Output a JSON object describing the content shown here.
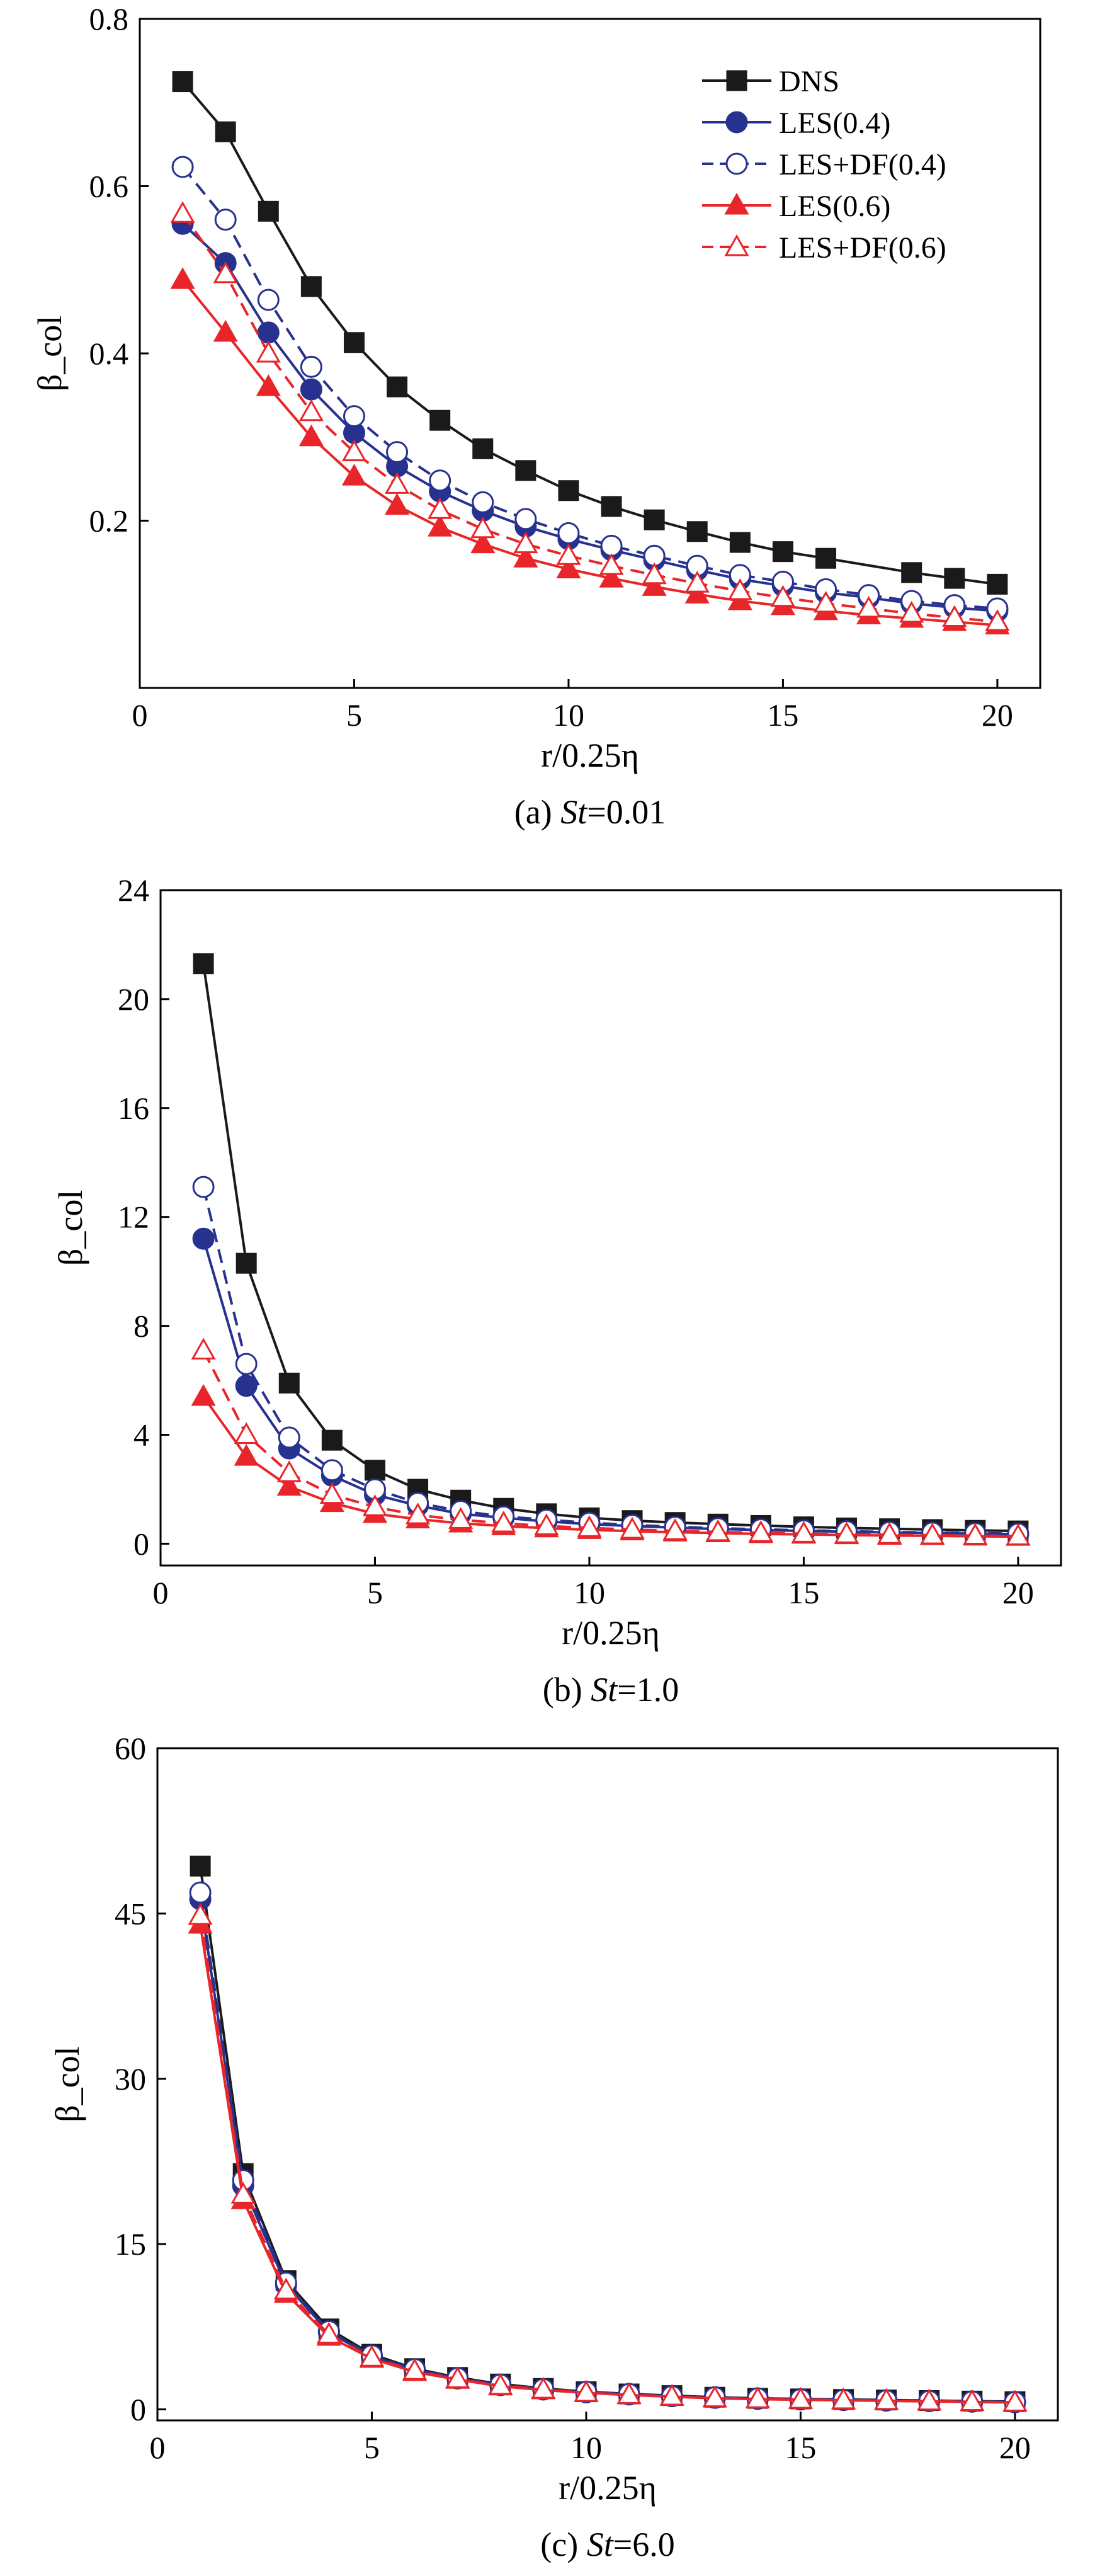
{
  "figure_title": "",
  "legend": [
    "DNS",
    "LES(0.4)",
    "LES+DF(0.4)",
    "LES(0.6)",
    "LES+DF(0.6)"
  ],
  "colors": {
    "dns": "#1a1a1a",
    "les04": "#27318f",
    "les06": "#e8262a",
    "axis": "#000000",
    "background": "#ffffff"
  },
  "chart_data": [
    {
      "type": "line",
      "id": "a",
      "caption_prefix": "(a) ",
      "caption_var": "St",
      "caption_value": "=0.01",
      "xlabel": "r/0.25η",
      "ylabel": "β_col",
      "xlim": [
        0,
        21
      ],
      "ylim": [
        0,
        0.8
      ],
      "xticks": [
        0,
        5,
        10,
        15,
        20
      ],
      "yticks": [
        0.2,
        0.4,
        0.6,
        0.8
      ],
      "xtick_labels": [
        "0",
        "5",
        "10",
        "15",
        "20"
      ],
      "ytick_labels": [
        "0.2",
        "0.4",
        "0.6",
        "0.8"
      ],
      "legend_position": "top-right",
      "series": [
        {
          "name": "DNS",
          "x": [
            1,
            2,
            3,
            4,
            5,
            6,
            7,
            8,
            9,
            10,
            11,
            12,
            13,
            14,
            15,
            16,
            18,
            19,
            20
          ],
          "values": [
            0.725,
            0.665,
            0.57,
            0.48,
            0.413,
            0.36,
            0.32,
            0.286,
            0.26,
            0.236,
            0.217,
            0.201,
            0.187,
            0.174,
            0.163,
            0.155,
            0.138,
            0.131,
            0.124
          ]
        },
        {
          "name": "LES(0.4)",
          "x": [
            1,
            2,
            3,
            4,
            5,
            6,
            7,
            8,
            9,
            10,
            11,
            12,
            13,
            14,
            15,
            16,
            17,
            18,
            19,
            20
          ],
          "values": [
            0.555,
            0.508,
            0.425,
            0.357,
            0.305,
            0.265,
            0.235,
            0.212,
            0.193,
            0.178,
            0.165,
            0.153,
            0.141,
            0.13,
            0.122,
            0.114,
            0.108,
            0.101,
            0.096,
            0.092
          ]
        },
        {
          "name": "LES+DF(0.4)",
          "x": [
            1,
            2,
            3,
            4,
            5,
            6,
            7,
            8,
            9,
            10,
            11,
            12,
            13,
            14,
            15,
            16,
            17,
            18,
            19,
            20
          ],
          "values": [
            0.623,
            0.56,
            0.464,
            0.384,
            0.325,
            0.282,
            0.248,
            0.222,
            0.202,
            0.185,
            0.17,
            0.158,
            0.146,
            0.135,
            0.127,
            0.118,
            0.111,
            0.104,
            0.099,
            0.095
          ]
        },
        {
          "name": "LES(0.6)",
          "x": [
            1,
            2,
            3,
            4,
            5,
            6,
            7,
            8,
            9,
            10,
            11,
            12,
            13,
            14,
            15,
            16,
            17,
            18,
            19,
            20
          ],
          "values": [
            0.488,
            0.425,
            0.36,
            0.3,
            0.253,
            0.218,
            0.192,
            0.172,
            0.155,
            0.142,
            0.131,
            0.121,
            0.112,
            0.104,
            0.098,
            0.092,
            0.087,
            0.083,
            0.079,
            0.075
          ]
        },
        {
          "name": "LES+DF(0.6)",
          "x": [
            1,
            2,
            3,
            4,
            5,
            6,
            7,
            8,
            9,
            10,
            11,
            12,
            13,
            14,
            15,
            16,
            17,
            18,
            19,
            20
          ],
          "values": [
            0.567,
            0.495,
            0.4,
            0.33,
            0.282,
            0.243,
            0.213,
            0.19,
            0.172,
            0.158,
            0.146,
            0.135,
            0.125,
            0.116,
            0.108,
            0.101,
            0.095,
            0.089,
            0.084,
            0.079
          ]
        }
      ]
    },
    {
      "type": "line",
      "id": "b",
      "caption_prefix": "(b) ",
      "caption_var": "St",
      "caption_value": "=1.0",
      "xlabel": "r/0.25η",
      "ylabel": "β_col",
      "xlim": [
        0,
        21
      ],
      "ylim": [
        -0.8,
        24
      ],
      "xticks": [
        0,
        5,
        10,
        15,
        20
      ],
      "yticks": [
        0,
        4,
        8,
        12,
        16,
        20,
        24
      ],
      "xtick_labels": [
        "0",
        "5",
        "10",
        "15",
        "20"
      ],
      "ytick_labels": [
        "0",
        "4",
        "8",
        "12",
        "16",
        "20",
        "24"
      ],
      "series": [
        {
          "name": "DNS",
          "x": [
            1,
            2,
            3,
            4,
            5,
            6,
            7,
            8,
            9,
            10,
            11,
            12,
            13,
            14,
            15,
            16,
            17,
            18,
            19,
            20
          ],
          "values": [
            21.3,
            10.3,
            5.9,
            3.8,
            2.7,
            2.0,
            1.6,
            1.3,
            1.1,
            0.95,
            0.85,
            0.78,
            0.72,
            0.67,
            0.62,
            0.58,
            0.55,
            0.52,
            0.49,
            0.47
          ]
        },
        {
          "name": "LES(0.4)",
          "x": [
            1,
            2,
            3,
            4,
            5,
            6,
            7,
            8,
            9,
            10,
            11,
            12,
            13,
            14,
            15,
            16,
            17,
            18,
            19,
            20
          ],
          "values": [
            11.2,
            5.8,
            3.5,
            2.5,
            1.8,
            1.4,
            1.1,
            0.95,
            0.82,
            0.72,
            0.65,
            0.59,
            0.54,
            0.5,
            0.47,
            0.44,
            0.41,
            0.39,
            0.37,
            0.35
          ]
        },
        {
          "name": "LES+DF(0.4)",
          "x": [
            1,
            2,
            3,
            4,
            5,
            6,
            7,
            8,
            9,
            10,
            11,
            12,
            13,
            14,
            15,
            16,
            17,
            18,
            19,
            20
          ],
          "values": [
            13.1,
            6.6,
            3.9,
            2.7,
            2.0,
            1.5,
            1.2,
            1.0,
            0.88,
            0.77,
            0.69,
            0.62,
            0.57,
            0.53,
            0.49,
            0.46,
            0.43,
            0.41,
            0.39,
            0.37
          ]
        },
        {
          "name": "LES(0.6)",
          "x": [
            1,
            2,
            3,
            4,
            5,
            6,
            7,
            8,
            9,
            10,
            11,
            12,
            13,
            14,
            15,
            16,
            17,
            18,
            19,
            20
          ],
          "values": [
            5.4,
            3.2,
            2.1,
            1.5,
            1.1,
            0.9,
            0.75,
            0.65,
            0.57,
            0.51,
            0.46,
            0.42,
            0.39,
            0.36,
            0.34,
            0.32,
            0.3,
            0.29,
            0.27,
            0.26
          ]
        },
        {
          "name": "LES+DF(0.6)",
          "x": [
            1,
            2,
            3,
            4,
            5,
            6,
            7,
            8,
            9,
            10,
            11,
            12,
            13,
            14,
            15,
            16,
            17,
            18,
            19,
            20
          ],
          "values": [
            7.1,
            4.0,
            2.6,
            1.8,
            1.35,
            1.05,
            0.88,
            0.75,
            0.65,
            0.58,
            0.52,
            0.47,
            0.43,
            0.4,
            0.37,
            0.35,
            0.33,
            0.31,
            0.3,
            0.28
          ]
        }
      ]
    },
    {
      "type": "line",
      "id": "c",
      "caption_prefix": "(c) ",
      "caption_var": "St",
      "caption_value": "=6.0",
      "xlabel": "r/0.25η",
      "ylabel": "β_col",
      "xlim": [
        0,
        21
      ],
      "ylim": [
        -1,
        60
      ],
      "xticks": [
        0,
        5,
        10,
        15,
        20
      ],
      "yticks": [
        0,
        15,
        30,
        45,
        60
      ],
      "xtick_labels": [
        "0",
        "5",
        "10",
        "15",
        "20"
      ],
      "ytick_labels": [
        "0",
        "15",
        "30",
        "45",
        "60"
      ],
      "series": [
        {
          "name": "DNS",
          "x": [
            1,
            2,
            3,
            4,
            5,
            6,
            7,
            8,
            9,
            10,
            11,
            12,
            13,
            14,
            15,
            16,
            17,
            18,
            19,
            20
          ],
          "values": [
            49.3,
            21.4,
            11.7,
            7.3,
            5.0,
            3.7,
            2.9,
            2.3,
            1.9,
            1.6,
            1.4,
            1.25,
            1.1,
            1.0,
            0.95,
            0.9,
            0.85,
            0.8,
            0.75,
            0.7
          ]
        },
        {
          "name": "LES(0.4)",
          "x": [
            1,
            2,
            3,
            4,
            5,
            6,
            7,
            8,
            9,
            10,
            11,
            12,
            13,
            14,
            15,
            16,
            17,
            18,
            19,
            20
          ],
          "values": [
            46.3,
            20.3,
            11.3,
            7.0,
            4.8,
            3.6,
            2.8,
            2.2,
            1.8,
            1.55,
            1.35,
            1.2,
            1.05,
            0.95,
            0.9,
            0.85,
            0.8,
            0.75,
            0.7,
            0.65
          ]
        },
        {
          "name": "LES+DF(0.4)",
          "x": [
            1,
            2,
            3,
            4,
            5,
            6,
            7,
            8,
            9,
            10,
            11,
            12,
            13,
            14,
            15,
            16,
            17,
            18,
            19,
            20
          ],
          "values": [
            46.9,
            20.8,
            11.5,
            7.1,
            4.9,
            3.65,
            2.85,
            2.25,
            1.85,
            1.6,
            1.4,
            1.2,
            1.1,
            1.0,
            0.92,
            0.87,
            0.82,
            0.77,
            0.72,
            0.67
          ]
        },
        {
          "name": "LES(0.6)",
          "x": [
            1,
            2,
            3,
            4,
            5,
            6,
            7,
            8,
            9,
            10,
            11,
            12,
            13,
            14,
            15,
            16,
            17,
            18,
            19,
            20
          ],
          "values": [
            44.0,
            19.0,
            10.5,
            6.6,
            4.6,
            3.4,
            2.7,
            2.1,
            1.75,
            1.5,
            1.3,
            1.15,
            1.0,
            0.92,
            0.87,
            0.82,
            0.77,
            0.72,
            0.67,
            0.62
          ]
        },
        {
          "name": "LES+DF(0.6)",
          "x": [
            1,
            2,
            3,
            4,
            5,
            6,
            7,
            8,
            9,
            10,
            11,
            12,
            13,
            14,
            15,
            16,
            17,
            18,
            19,
            20
          ],
          "values": [
            44.8,
            19.5,
            10.8,
            6.8,
            4.7,
            3.5,
            2.75,
            2.15,
            1.8,
            1.52,
            1.32,
            1.17,
            1.02,
            0.94,
            0.89,
            0.84,
            0.79,
            0.74,
            0.69,
            0.64
          ]
        }
      ]
    }
  ]
}
